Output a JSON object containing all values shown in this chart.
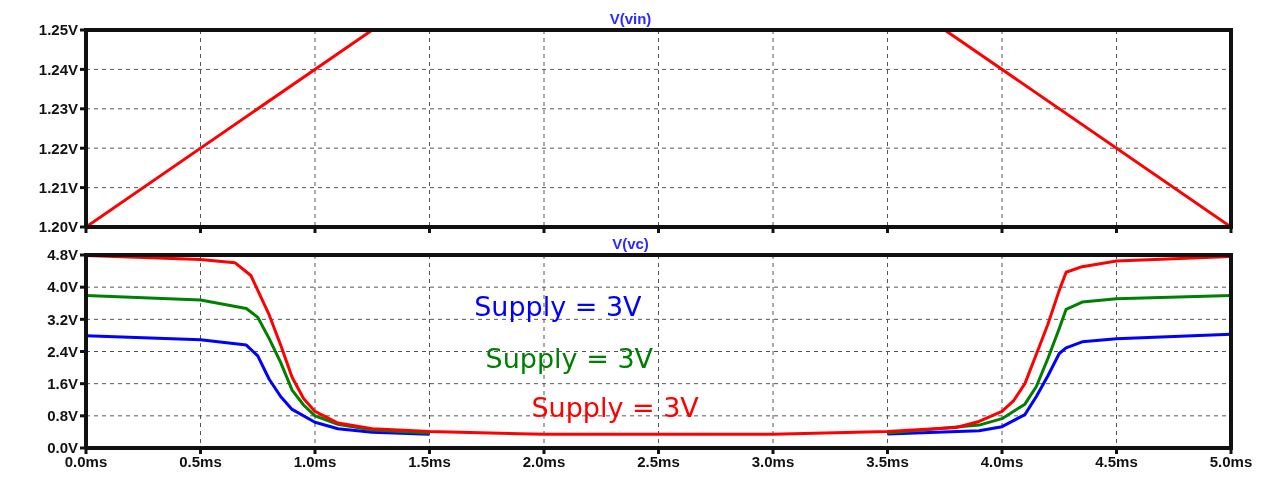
{
  "chart_data": [
    {
      "type": "line",
      "title": "V(vin)",
      "xlim": [
        0,
        5
      ],
      "xticks": [
        {
          "value": 0,
          "label": null
        },
        {
          "value": 0.5,
          "label": null
        },
        {
          "value": 1,
          "label": null
        },
        {
          "value": 1.5,
          "label": null
        },
        {
          "value": 2,
          "label": null
        },
        {
          "value": 2.5,
          "label": null
        },
        {
          "value": 3,
          "label": null
        },
        {
          "value": 3.5,
          "label": null
        },
        {
          "value": 4,
          "label": null
        },
        {
          "value": 4.5,
          "label": null
        },
        {
          "value": 5,
          "label": null
        }
      ],
      "ylim": [
        1.2,
        1.25
      ],
      "yticks": [
        {
          "value": 1.2,
          "label": "1.20V"
        },
        {
          "value": 1.21,
          "label": "1.21V"
        },
        {
          "value": 1.22,
          "label": "1.22V"
        },
        {
          "value": 1.23,
          "label": "1.23V"
        },
        {
          "value": 1.24,
          "label": "1.24V"
        },
        {
          "value": 1.25,
          "label": "1.25V"
        }
      ],
      "tick_labels": "y",
      "grid": true,
      "legend": false,
      "marker": "none",
      "line_style": "solid",
      "series": [
        {
          "color": "#ff0000",
          "x": [
            0,
            1.25,
            2.5,
            3.75,
            5
          ],
          "values": [
            1.2,
            1.25,
            null,
            1.25,
            1.2
          ]
        }
      ]
    },
    {
      "type": "line",
      "title": "V(vc)",
      "xlim": [
        0,
        5
      ],
      "xticks": [
        {
          "value": 0,
          "label": "0.0ms"
        },
        {
          "value": 0.5,
          "label": "0.5ms"
        },
        {
          "value": 1,
          "label": "1.0ms"
        },
        {
          "value": 1.5,
          "label": "1.5ms"
        },
        {
          "value": 2,
          "label": "2.0ms"
        },
        {
          "value": 2.5,
          "label": "2.5ms"
        },
        {
          "value": 3,
          "label": "3.0ms"
        },
        {
          "value": 3.5,
          "label": "3.5ms"
        },
        {
          "value": 4,
          "label": "4.0ms"
        },
        {
          "value": 4.5,
          "label": "4.5ms"
        },
        {
          "value": 5,
          "label": "5.0ms"
        }
      ],
      "ylim": [
        0,
        4.8
      ],
      "yticks": [
        {
          "value": 0,
          "label": "0.0V"
        },
        {
          "value": 0.8,
          "label": "0.8V"
        },
        {
          "value": 1.6,
          "label": "1.6V"
        },
        {
          "value": 2.4,
          "label": "2.4V"
        },
        {
          "value": 3.2,
          "label": "3.2V"
        },
        {
          "value": 4,
          "label": "4.0V"
        },
        {
          "value": 4.8,
          "label": "4.8V"
        }
      ],
      "grid": true,
      "legend": false,
      "marker": "none",
      "line_style": "solid",
      "series": [
        {
          "name": "Supply = 3V",
          "color": "#0000ff",
          "x": [
            0,
            0.5,
            0.7,
            0.75,
            0.8,
            0.85,
            0.9,
            1.0,
            1.1,
            1.25,
            1.5,
            2.0,
            3.0,
            3.5,
            3.9,
            4.0,
            4.1,
            4.15,
            4.2,
            4.25,
            4.28,
            4.35,
            4.5,
            5.0
          ],
          "values": [
            2.79,
            2.69,
            2.56,
            2.29,
            1.71,
            1.28,
            0.96,
            0.64,
            0.48,
            0.39,
            0.34,
            null,
            null,
            0.35,
            0.43,
            0.53,
            0.83,
            1.28,
            1.79,
            2.35,
            2.49,
            2.64,
            2.72,
            2.83
          ]
        },
        {
          "name": "Supply = 3V",
          "color": "#008000",
          "x": [
            0,
            0.5,
            0.7,
            0.75,
            0.8,
            0.85,
            0.9,
            0.95,
            1.0,
            1.1,
            1.25,
            1.5,
            2.0,
            3.0,
            3.5,
            3.9,
            4.0,
            4.1,
            4.15,
            4.2,
            4.25,
            4.28,
            4.35,
            4.5,
            5.0
          ],
          "values": [
            3.79,
            3.68,
            3.47,
            3.25,
            2.72,
            2.13,
            1.44,
            1.07,
            0.8,
            0.59,
            0.45,
            0.37,
            null,
            null,
            0.37,
            0.57,
            0.73,
            1.09,
            1.53,
            2.22,
            2.97,
            3.45,
            3.63,
            3.71,
            3.79
          ]
        },
        {
          "name": "Supply = 3V",
          "color": "#ff0000",
          "x": [
            0,
            0.5,
            0.65,
            0.72,
            0.8,
            0.85,
            0.9,
            0.95,
            1.0,
            1.1,
            1.25,
            1.5,
            2.0,
            3.0,
            3.5,
            3.8,
            3.9,
            4.0,
            4.05,
            4.1,
            4.15,
            4.2,
            4.25,
            4.28,
            4.35,
            4.5,
            5.0
          ],
          "values": [
            4.79,
            4.69,
            4.61,
            4.29,
            3.31,
            2.56,
            1.76,
            1.23,
            0.91,
            0.62,
            0.48,
            0.41,
            0.34,
            0.34,
            0.41,
            0.51,
            0.66,
            0.91,
            1.17,
            1.6,
            2.33,
            3.07,
            3.92,
            4.37,
            4.51,
            4.65,
            4.76
          ]
        }
      ]
    }
  ]
}
